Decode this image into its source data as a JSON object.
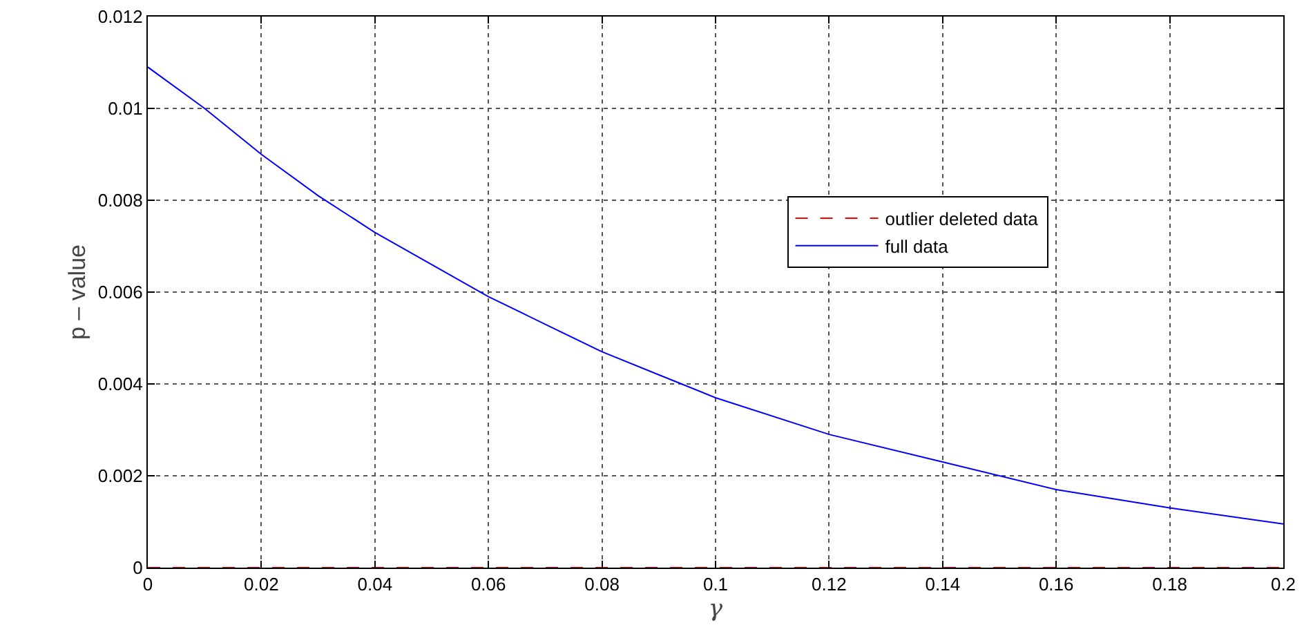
{
  "chart_data": {
    "type": "line",
    "xlabel": "γ",
    "ylabel": "p – value",
    "x": [
      0,
      0.01,
      0.02,
      0.03,
      0.04,
      0.05,
      0.06,
      0.07,
      0.08,
      0.09,
      0.1,
      0.12,
      0.14,
      0.16,
      0.18,
      0.2
    ],
    "series": [
      {
        "name": "outlier deleted data",
        "color": "#ff0000",
        "line_style": "dashed",
        "values": [
          0,
          0,
          0,
          0,
          0,
          0,
          0,
          0,
          0,
          0,
          0,
          0,
          0,
          0,
          0,
          0
        ]
      },
      {
        "name": "full data",
        "color": "#0000ff",
        "line_style": "solid",
        "values": [
          0.0109,
          0.01,
          0.009,
          0.0081,
          0.0073,
          0.0066,
          0.0059,
          0.0053,
          0.0047,
          0.0042,
          0.0037,
          0.0029,
          0.0023,
          0.0017,
          0.0013,
          0.00095
        ]
      }
    ],
    "xlim": [
      0,
      0.2
    ],
    "xticks": [
      0,
      0.02,
      0.04,
      0.06,
      0.08,
      0.1,
      0.12,
      0.14,
      0.16,
      0.18,
      0.2
    ],
    "ylim": [
      0,
      0.012
    ],
    "yticks": [
      0,
      0.002,
      0.004,
      0.006,
      0.008,
      0.01,
      0.012
    ],
    "grid": true,
    "legend": "right"
  }
}
